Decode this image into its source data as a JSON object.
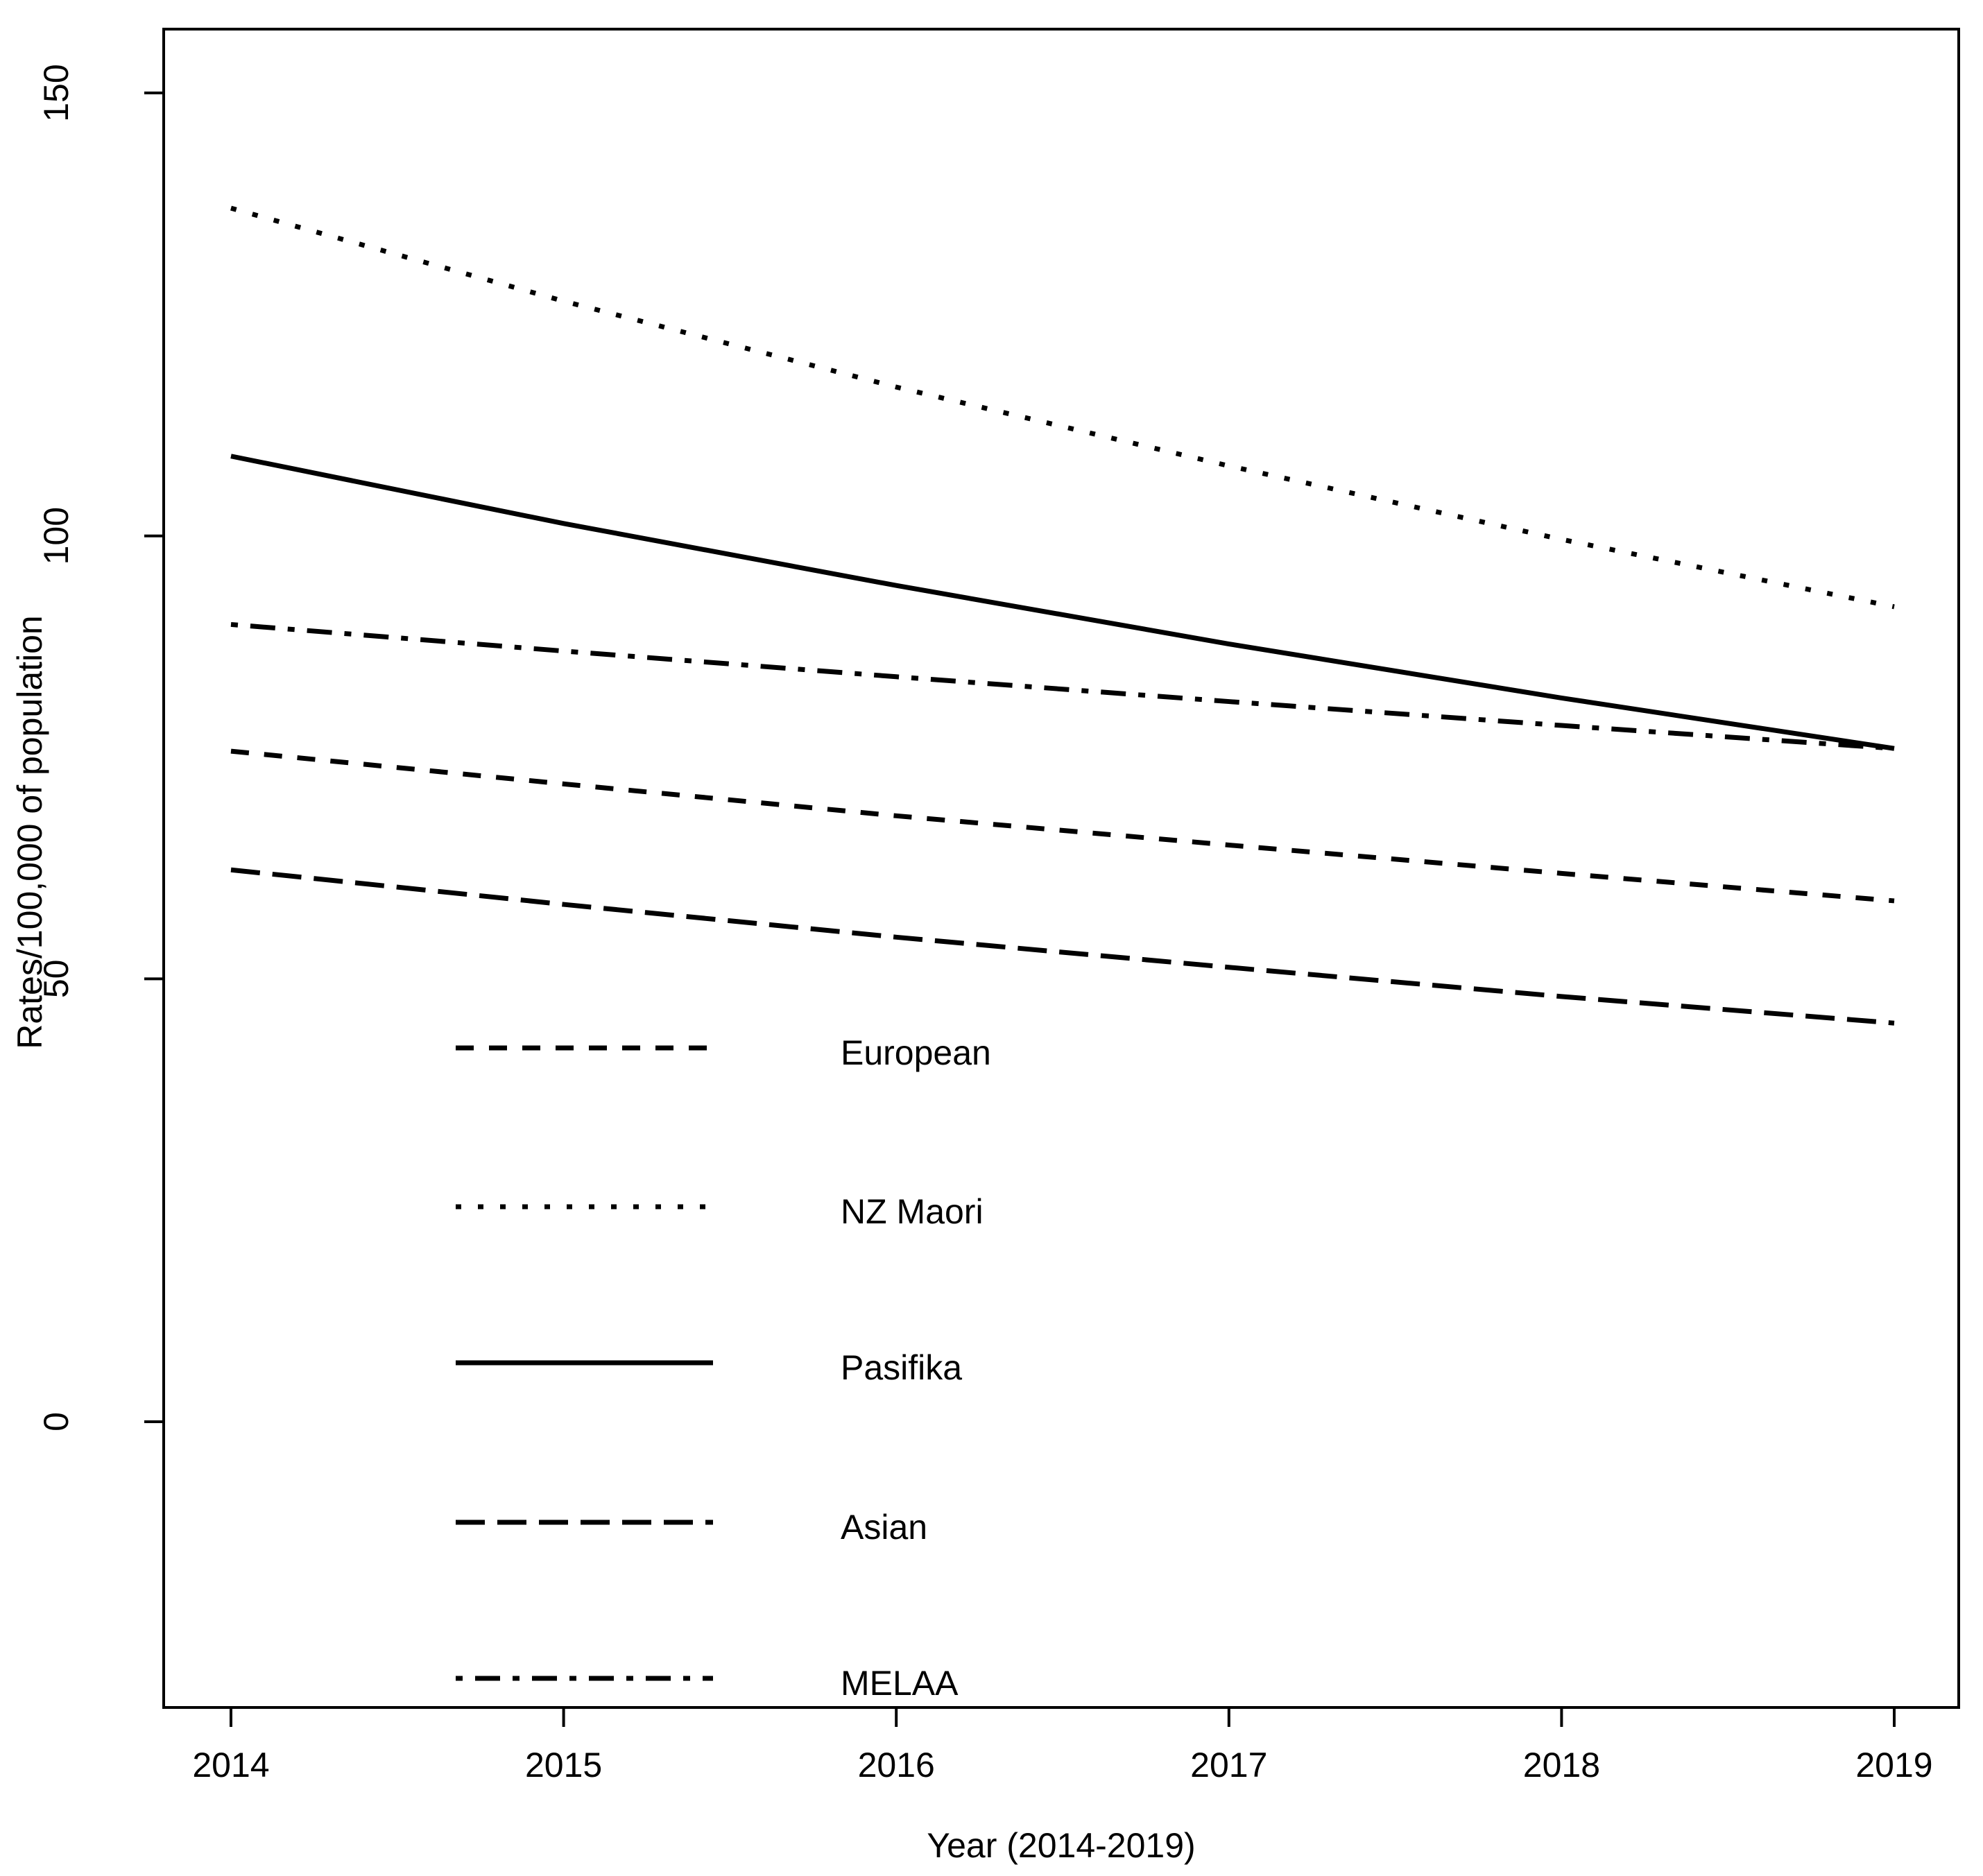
{
  "chart_data": {
    "type": "line",
    "title": "",
    "xlabel": "Year (2014-2019)",
    "ylabel": "Rates/100,000 of population",
    "x": [
      2014,
      2015,
      2016,
      2017,
      2018,
      2019
    ],
    "x_tick_labels": [
      "2014",
      "2015",
      "2016",
      "2017",
      "2018",
      "2019"
    ],
    "y_ticks": [
      0,
      50,
      100,
      150
    ],
    "y_tick_labels": [
      "0",
      "50",
      "100",
      "150"
    ],
    "ylim": [
      -32,
      157
    ],
    "xlim": [
      2013.8,
      2019.2
    ],
    "grid": false,
    "legend_position": "inside-lower-left",
    "line_color": "#000000",
    "background_color": "#ffffff",
    "series": [
      {
        "name": "European",
        "linestyle": "dashed",
        "values": [
          75.7,
          72.0,
          68.4,
          65.1,
          61.9,
          58.8
        ]
      },
      {
        "name": "NZ Maori",
        "linestyle": "dotted",
        "values": [
          137.0,
          126.5,
          116.8,
          107.9,
          99.6,
          92.0
        ]
      },
      {
        "name": "Pasifika",
        "linestyle": "solid",
        "values": [
          109.0,
          101.4,
          94.4,
          87.8,
          81.7,
          76.0
        ]
      },
      {
        "name": "Asian",
        "linestyle": "longdash",
        "values": [
          62.3,
          58.4,
          54.7,
          51.3,
          48.0,
          45.0
        ]
      },
      {
        "name": "MELAA",
        "linestyle": "dashdot",
        "values": [
          90.0,
          87.0,
          84.1,
          81.3,
          78.6,
          76.0
        ]
      }
    ]
  }
}
